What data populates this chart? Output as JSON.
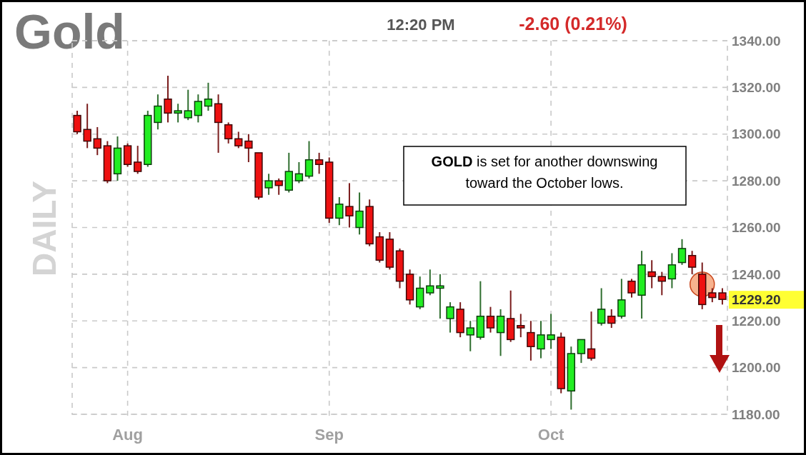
{
  "chart_data": {
    "type": "candlestick",
    "title": "Gold",
    "subtitle": "12:20 PM",
    "ylabel": "DAILY",
    "annotations": [
      "-2.60 (0.21%)",
      "GOLD is set for another downswing toward the October lows.",
      "1229.20"
    ],
    "categories": [
      null,
      null,
      null,
      null,
      null,
      "Aug",
      null,
      null,
      null,
      null,
      null,
      null,
      null,
      null,
      null,
      null,
      null,
      null,
      null,
      null,
      null,
      null,
      null,
      null,
      null,
      "Sep",
      null,
      null,
      null,
      null,
      null,
      null,
      null,
      null,
      null,
      null,
      null,
      null,
      null,
      null,
      null,
      null,
      null,
      null,
      null,
      null,
      null,
      "Oct",
      null,
      null,
      null,
      null,
      null,
      null,
      null,
      null,
      null,
      null,
      null,
      null,
      null,
      null,
      null,
      null,
      null
    ],
    "ohlc": [
      [
        1308,
        1310,
        1300,
        1301
      ],
      [
        1302,
        1313,
        1294,
        1297
      ],
      [
        1298,
        1303,
        1291,
        1294
      ],
      [
        1295,
        1297,
        1279,
        1280
      ],
      [
        1283,
        1299,
        1280,
        1294
      ],
      [
        1295,
        1296,
        1286,
        1287
      ],
      [
        1288,
        1295,
        1283,
        1284
      ],
      [
        1287,
        1310,
        1286,
        1308
      ],
      [
        1305,
        1317,
        1302,
        1312
      ],
      [
        1315,
        1325,
        1305,
        1309
      ],
      [
        1309,
        1313,
        1305,
        1310
      ],
      [
        1307,
        1319,
        1306,
        1310
      ],
      [
        1308,
        1317,
        1305,
        1314
      ],
      [
        1312,
        1322,
        1310,
        1315
      ],
      [
        1313,
        1317,
        1292,
        1305
      ],
      [
        1304,
        1305,
        1296,
        1298
      ],
      [
        1298,
        1301,
        1294,
        1295
      ],
      [
        1297,
        1300,
        1288,
        1294
      ],
      [
        1292,
        1292,
        1272,
        1273
      ],
      [
        1277,
        1283,
        1274,
        1280
      ],
      [
        1280,
        1281,
        1274,
        1278
      ],
      [
        1276,
        1292,
        1275,
        1284
      ],
      [
        1280,
        1288,
        1279,
        1283
      ],
      [
        1282,
        1297,
        1281,
        1289
      ],
      [
        1289,
        1292,
        1283,
        1287
      ],
      [
        1288,
        1290,
        1262,
        1264
      ],
      [
        1264,
        1273,
        1261,
        1270
      ],
      [
        1269,
        1279,
        1260,
        1265
      ],
      [
        1260,
        1275,
        1257,
        1267
      ],
      [
        1269,
        1272,
        1252,
        1253
      ],
      [
        1256,
        1258,
        1245,
        1246
      ],
      [
        1255,
        1258,
        1242,
        1243
      ],
      [
        1250,
        1251,
        1234,
        1237
      ],
      [
        1240,
        1242,
        1227,
        1229
      ],
      [
        1226,
        1239,
        1225,
        1234
      ],
      [
        1232,
        1242,
        1231,
        1235
      ],
      [
        1234,
        1240,
        1221,
        1235
      ],
      [
        1221,
        1228,
        1215,
        1226
      ],
      [
        1225,
        1228,
        1213,
        1215
      ],
      [
        1214,
        1220,
        1207,
        1217
      ],
      [
        1213,
        1237,
        1212,
        1222
      ],
      [
        1222,
        1226,
        1215,
        1217
      ],
      [
        1215,
        1225,
        1205,
        1222
      ],
      [
        1221,
        1233,
        1211,
        1212
      ],
      [
        1218,
        1223,
        1213,
        1217
      ],
      [
        1215,
        1220,
        1203,
        1209
      ],
      [
        1208,
        1220,
        1204,
        1214
      ],
      [
        1212,
        1223,
        1208,
        1214
      ],
      [
        1213,
        1215,
        1189,
        1191
      ],
      [
        1190,
        1209,
        1182,
        1206
      ],
      [
        1206,
        1212,
        1202,
        1212
      ],
      [
        1208,
        1224,
        1203,
        1204
      ],
      [
        1219,
        1234,
        1218,
        1225
      ],
      [
        1222,
        1225,
        1217,
        1219
      ],
      [
        1222,
        1238,
        1221,
        1229
      ],
      [
        1237,
        1238,
        1230,
        1232
      ],
      [
        1231,
        1250,
        1221,
        1244
      ],
      [
        1241,
        1246,
        1234,
        1239
      ],
      [
        1239,
        1241,
        1231,
        1237
      ],
      [
        1238,
        1249,
        1234,
        1244
      ],
      [
        1245,
        1255,
        1244,
        1251
      ],
      [
        1248,
        1250,
        1240,
        1243
      ],
      [
        1240,
        1245,
        1225,
        1227
      ],
      [
        1232,
        1234,
        1228,
        1230
      ],
      [
        1232,
        1234,
        1227,
        1229.2
      ]
    ],
    "ylim": [
      1180,
      1340
    ],
    "yticks": [
      {
        "value": 1180,
        "label": "1180.00"
      },
      {
        "value": 1200,
        "label": "1200.00"
      },
      {
        "value": 1220,
        "label": "1220.00"
      },
      {
        "value": 1240,
        "label": "1240.00"
      },
      {
        "value": 1260,
        "label": "1260.00"
      },
      {
        "value": 1280,
        "label": "1280.00"
      },
      {
        "value": 1300,
        "label": "1300.00"
      },
      {
        "value": 1320,
        "label": "1320.00"
      },
      {
        "value": 1340,
        "label": "1340.00"
      }
    ],
    "grid": true
  }
}
